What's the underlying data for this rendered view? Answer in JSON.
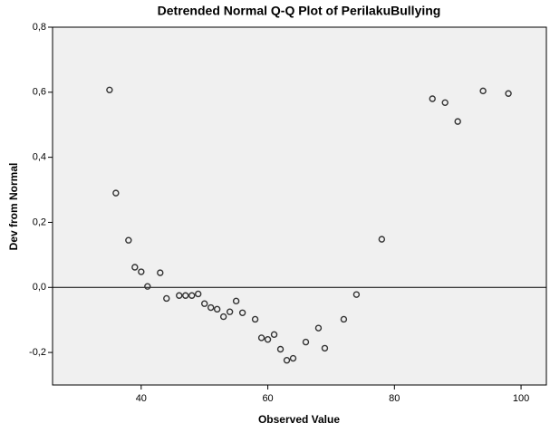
{
  "chart_data": {
    "type": "scatter",
    "title": "Detrended Normal Q-Q Plot of PerilakuBullying",
    "xlabel": "Observed Value",
    "ylabel": "Dev from Normal",
    "x": [
      35,
      36,
      38,
      39,
      40,
      41,
      43,
      44,
      46,
      47,
      48,
      49,
      50,
      51,
      52,
      53,
      54,
      55,
      56,
      58,
      59,
      60,
      61,
      62,
      63,
      64,
      66,
      68,
      69,
      72,
      74,
      78,
      86,
      88,
      90,
      94,
      98
    ],
    "values": [
      0.607,
      0.29,
      0.145,
      0.062,
      0.048,
      0.003,
      0.045,
      -0.034,
      -0.025,
      -0.025,
      -0.025,
      -0.02,
      -0.05,
      -0.062,
      -0.067,
      -0.09,
      -0.075,
      -0.042,
      -0.078,
      -0.098,
      -0.155,
      -0.16,
      -0.145,
      -0.19,
      -0.224,
      -0.218,
      -0.168,
      -0.125,
      -0.187,
      -0.098,
      -0.022,
      0.148,
      0.58,
      0.568,
      0.51,
      0.604,
      0.596
    ],
    "color": "#333333",
    "reference_line": 0,
    "xlim": [
      26,
      104
    ],
    "xticks": [
      40,
      60,
      80,
      100
    ],
    "ylim": [
      -0.3,
      0.8
    ],
    "yticks": [
      {
        "value": -0.2,
        "label": "-0,2"
      },
      {
        "value": 0,
        "label": "0,0"
      },
      {
        "value": 0.2,
        "label": "0,2"
      },
      {
        "value": 0.4,
        "label": "0,4"
      },
      {
        "value": 0.6,
        "label": "0,6"
      },
      {
        "value": 0.8,
        "label": "0,8"
      }
    ]
  }
}
